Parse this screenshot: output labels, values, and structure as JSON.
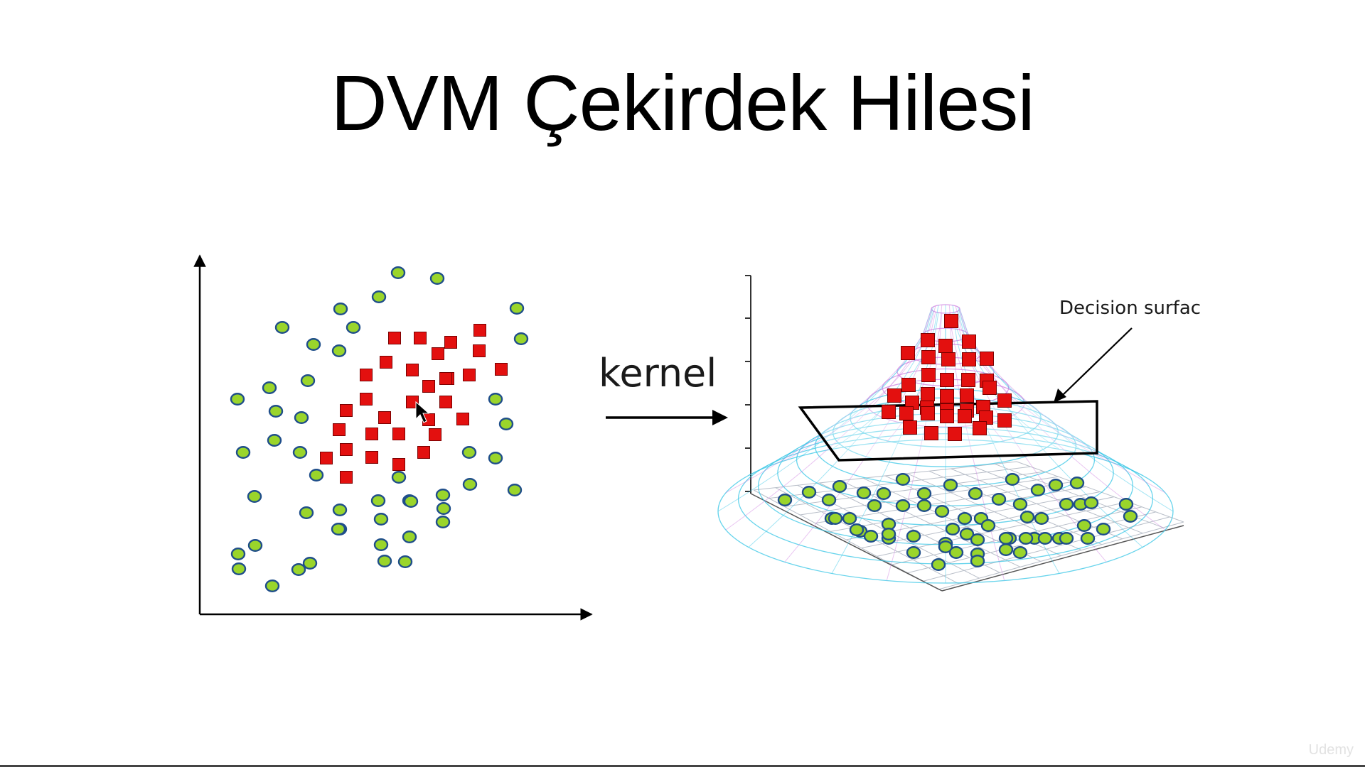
{
  "title": "DVM Çekirdek Hilesi",
  "kernel_label": "kernel",
  "decision_surface_label": "Decision surfac",
  "watermark": "Udemy",
  "colors": {
    "circle_fill": "#9ad52b",
    "circle_stroke": "#1f4e8a",
    "square_fill": "#e3100f",
    "square_stroke": "#7a0000",
    "grid": "#b9bfc9",
    "mesh_pink": "#cf7fe0",
    "mesh_cyan": "#35c6e6"
  },
  "icons": [
    "arrow-right-icon",
    "cursor-pointer-icon",
    "udemy-logo-icon"
  ]
}
